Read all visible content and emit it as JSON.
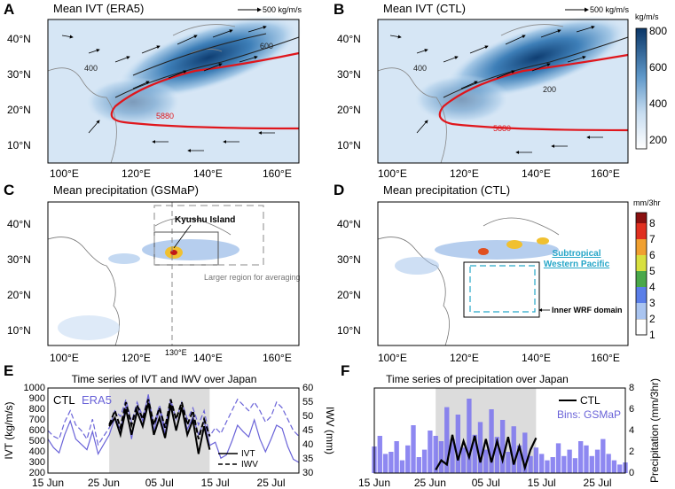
{
  "figure": {
    "panels": [
      "A",
      "B",
      "C",
      "D",
      "E",
      "F"
    ]
  },
  "colors": {
    "ivt_low": "#ffffff",
    "ivt_high": "#0b3768",
    "contour_5880": "#e0161c",
    "ctl_line": "#000000",
    "era5_line": "#6a63d8",
    "bins": "#7a73ee",
    "shade": "#dcdcdc",
    "subtropical": "#26a6c8"
  },
  "panelA": {
    "letter": "A",
    "title": "Mean IVT (ERA5)",
    "ref_vector": "500 kg/m/s",
    "lat_ticks": [
      "10°N",
      "20°N",
      "30°N",
      "40°N"
    ],
    "lon_ticks": [
      "100°E",
      "120°E",
      "140°E",
      "160°E"
    ],
    "contour_labels": [
      "400",
      "600",
      "200",
      "400",
      "5880"
    ]
  },
  "panelB": {
    "letter": "B",
    "title": "Mean IVT (CTL)",
    "ref_vector": "500 kg/m/s",
    "lat_ticks": [
      "10°N",
      "20°N",
      "30°N",
      "40°N"
    ],
    "lon_ticks": [
      "100°E",
      "120°E",
      "140°E",
      "160°E"
    ],
    "contour_labels": [
      "400",
      "200",
      "200",
      "400",
      "5880"
    ],
    "colorbar": {
      "unit": "kg/m/s",
      "ticks": [
        "200",
        "400",
        "600",
        "800"
      ],
      "range": [
        150,
        800
      ]
    }
  },
  "panelC": {
    "letter": "C",
    "title": "Mean precipitation (GSMaP)",
    "lat_ticks": [
      "10°N",
      "20°N",
      "30°N",
      "40°N"
    ],
    "lon_ticks": [
      "100°E",
      "120°E",
      "140°E",
      "160°E"
    ],
    "annotations": {
      "kyushu": "Kyushu Island",
      "larger_region": "Larger region for averaging",
      "meridian": "130°E"
    }
  },
  "panelD": {
    "letter": "D",
    "title": "Mean precipitation (CTL)",
    "lat_ticks": [
      "10°N",
      "20°N",
      "30°N",
      "40°N"
    ],
    "lon_ticks": [
      "100°E",
      "120°E",
      "140°E",
      "160°E"
    ],
    "annotations": {
      "stwp_line1": "Subtropical",
      "stwp_line2": "Western Pacific",
      "inner": "Inner WRF domain"
    },
    "colorbar": {
      "unit": "mm/3hr",
      "ticks": [
        "1",
        "2",
        "3",
        "4",
        "5",
        "6",
        "7",
        "8"
      ],
      "range": [
        1,
        8
      ]
    }
  },
  "chart_data": [
    {
      "panel": "E",
      "type": "line",
      "letter": "E",
      "title": "Time series of IVT and IWV over Japan",
      "ylabel_left": "IVT (kg/m/s)",
      "ylabel_right": "IWV (mm)",
      "ylim_left": [
        200,
        1000
      ],
      "ylim_right": [
        30,
        60
      ],
      "xlim": [
        15,
        60
      ],
      "x_ticks": [
        {
          "x": 15,
          "label": "15 Jun"
        },
        {
          "x": 25,
          "label": "25 Jun"
        },
        {
          "x": 35,
          "label": "05 Jul"
        },
        {
          "x": 45,
          "label": "15 Jul"
        },
        {
          "x": 55,
          "label": "25 Jul"
        }
      ],
      "y_ticks_left": [
        "200",
        "300",
        "400",
        "500",
        "600",
        "700",
        "800",
        "900",
        "1000"
      ],
      "y_ticks_right": [
        "30",
        "35",
        "40",
        "45",
        "50",
        "55",
        "60"
      ],
      "shaded_period": [
        26,
        44
      ],
      "legend": {
        "ctl": "CTL",
        "era5": "ERA5",
        "ivt": "IVT",
        "iwv": "IWV"
      },
      "series": [
        {
          "name": "ERA5 IVT",
          "axis": "left",
          "style": "solid",
          "color": "#6a63d8",
          "x": [
            15,
            16,
            17,
            18,
            19,
            20,
            21,
            22,
            23,
            24,
            25,
            26,
            27,
            28,
            29,
            30,
            31,
            32,
            33,
            34,
            35,
            36,
            37,
            38,
            39,
            40,
            41,
            42,
            43,
            44,
            45,
            46,
            47,
            48,
            49,
            50,
            51,
            52,
            53,
            54,
            55,
            56,
            57,
            58,
            59,
            60
          ],
          "y": [
            520,
            440,
            390,
            560,
            690,
            520,
            470,
            420,
            590,
            380,
            470,
            560,
            720,
            610,
            840,
            520,
            830,
            690,
            940,
            600,
            800,
            570,
            870,
            600,
            820,
            610,
            730,
            560,
            690,
            460,
            490,
            340,
            370,
            500,
            650,
            590,
            540,
            700,
            520,
            400,
            520,
            650,
            620,
            450,
            330,
            300
          ]
        },
        {
          "name": "ERA5 IWV",
          "axis": "right",
          "style": "dashed",
          "color": "#6a63d8",
          "x": [
            15,
            16,
            17,
            18,
            19,
            20,
            21,
            22,
            23,
            24,
            25,
            26,
            27,
            28,
            29,
            30,
            31,
            32,
            33,
            34,
            35,
            36,
            37,
            38,
            39,
            40,
            41,
            42,
            43,
            44,
            45,
            46,
            47,
            48,
            49,
            50,
            51,
            52,
            53,
            54,
            55,
            56,
            57,
            58,
            59,
            60
          ],
          "y": [
            45,
            43,
            42,
            48,
            52,
            47,
            45,
            42,
            49,
            40,
            43,
            46,
            52,
            50,
            56,
            48,
            55,
            50,
            57,
            47,
            54,
            46,
            56,
            49,
            55,
            49,
            53,
            47,
            52,
            43,
            46,
            44,
            48,
            52,
            56,
            54,
            52,
            55,
            52,
            48,
            50,
            55,
            53,
            49,
            45,
            43
          ]
        },
        {
          "name": "CTL IVT",
          "axis": "left",
          "style": "solid",
          "color": "#000000",
          "x": [
            26,
            27,
            28,
            29,
            30,
            31,
            32,
            33,
            34,
            35,
            36,
            37,
            38,
            39,
            40,
            41,
            42,
            43,
            44
          ],
          "y": [
            640,
            720,
            560,
            800,
            560,
            780,
            640,
            860,
            560,
            720,
            530,
            840,
            600,
            820,
            560,
            700,
            380,
            640,
            420
          ]
        },
        {
          "name": "CTL IWV",
          "axis": "right",
          "style": "dashed",
          "color": "#000000",
          "x": [
            26,
            27,
            28,
            29,
            30,
            31,
            32,
            33,
            34,
            35,
            36,
            37,
            38,
            39,
            40,
            41,
            42,
            43,
            44
          ],
          "y": [
            47,
            52,
            46,
            55,
            47,
            54,
            49,
            56,
            47,
            53,
            46,
            56,
            49,
            55,
            47,
            52,
            42,
            49,
            43
          ]
        }
      ]
    },
    {
      "panel": "F",
      "type": "bar",
      "letter": "F",
      "title": "Time series of precipitation over Japan",
      "ylabel": "Precipitation (mm/3hr)",
      "ylim": [
        0,
        8
      ],
      "xlim": [
        15,
        60
      ],
      "x_ticks": [
        {
          "x": 15,
          "label": "15 Jun"
        },
        {
          "x": 25,
          "label": "25 Jun"
        },
        {
          "x": 35,
          "label": "05 Jul"
        },
        {
          "x": 45,
          "label": "15 Jul"
        },
        {
          "x": 55,
          "label": "25 Jul"
        }
      ],
      "y_ticks": [
        "0",
        "2",
        "4",
        "6",
        "8"
      ],
      "shaded_period": [
        26,
        44
      ],
      "legend": {
        "ctl": "CTL",
        "bins": "Bins: GSMaP"
      },
      "bins_x": [
        15,
        16,
        17,
        18,
        19,
        20,
        21,
        22,
        23,
        24,
        25,
        26,
        27,
        28,
        29,
        30,
        31,
        32,
        33,
        34,
        35,
        36,
        37,
        38,
        39,
        40,
        41,
        42,
        43,
        44,
        45,
        46,
        47,
        48,
        49,
        50,
        51,
        52,
        53,
        54,
        55,
        56,
        57,
        58,
        59,
        60
      ],
      "bins_gsmap": [
        2.5,
        3.5,
        1.8,
        2.0,
        3.0,
        1.2,
        2.6,
        4.5,
        1.5,
        2.2,
        4.0,
        3.5,
        3.0,
        6.2,
        3.2,
        5.5,
        2.4,
        7.0,
        3.6,
        4.8,
        2.2,
        6.0,
        3.4,
        5.0,
        2.0,
        4.4,
        2.6,
        3.8,
        1.6,
        2.4,
        1.8,
        1.2,
        1.5,
        2.8,
        1.6,
        2.2,
        1.4,
        3.0,
        2.6,
        1.6,
        2.2,
        3.2,
        1.8,
        1.2,
        0.8,
        1.0
      ],
      "ctl_x": [
        26,
        27,
        28,
        29,
        30,
        31,
        32,
        33,
        34,
        35,
        36,
        37,
        38,
        39,
        40,
        41,
        42,
        43,
        44
      ],
      "ctl_values": [
        0.3,
        1.2,
        0.8,
        3.6,
        1.2,
        3.0,
        1.5,
        3.5,
        1.0,
        3.2,
        1.0,
        3.0,
        1.2,
        3.4,
        0.8,
        2.5,
        0.5,
        2.2,
        3.3
      ]
    }
  ]
}
